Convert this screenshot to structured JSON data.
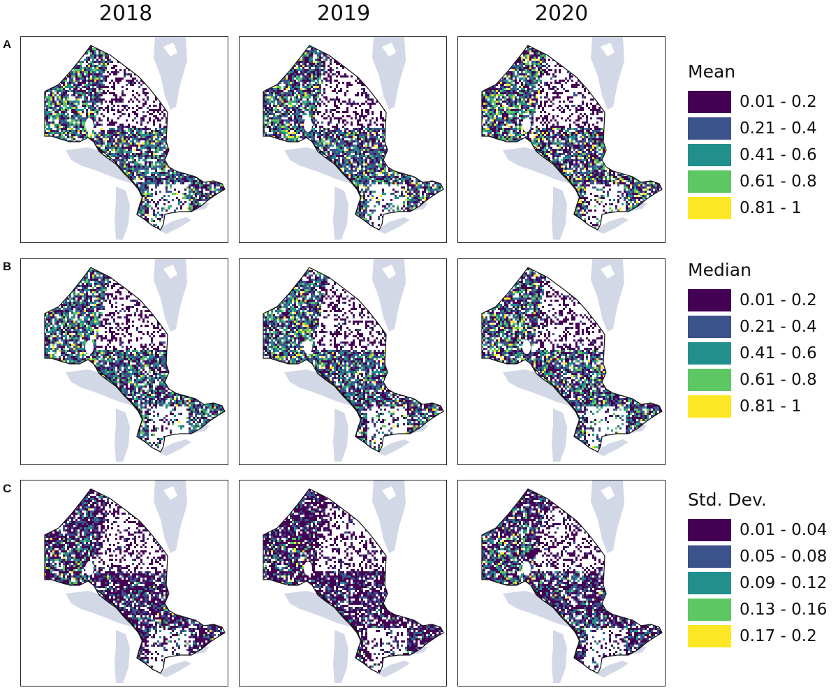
{
  "years": [
    "2018",
    "2019",
    "2020"
  ],
  "rows": [
    {
      "label": "A",
      "legend_title": "Mean",
      "classes": [
        "0.01 - 0.2",
        "0.21 - 0.4",
        "0.41 - 0.6",
        "0.61 - 0.8",
        "0.81 - 1"
      ],
      "palette_weights": [
        [
          0.34,
          0.3,
          0.2,
          0.12,
          0.04
        ],
        [
          0.36,
          0.31,
          0.18,
          0.11,
          0.04
        ],
        [
          0.4,
          0.24,
          0.16,
          0.12,
          0.08
        ]
      ]
    },
    {
      "label": "B",
      "legend_title": "Median",
      "classes": [
        "0.01 - 0.2",
        "0.21 - 0.4",
        "0.41 - 0.6",
        "0.61 - 0.8",
        "0.81 - 1"
      ],
      "palette_weights": [
        [
          0.36,
          0.3,
          0.2,
          0.11,
          0.03
        ],
        [
          0.38,
          0.3,
          0.18,
          0.1,
          0.04
        ],
        [
          0.4,
          0.28,
          0.17,
          0.11,
          0.04
        ]
      ]
    },
    {
      "label": "C",
      "legend_title": "Std. Dev.",
      "classes": [
        "0.01 - 0.04",
        "0.05 - 0.08",
        "0.09 - 0.12",
        "0.13 - 0.16",
        "0.17 - 0.2"
      ],
      "palette_weights": [
        [
          0.62,
          0.26,
          0.09,
          0.025,
          0.005
        ],
        [
          0.72,
          0.21,
          0.06,
          0.01,
          0.0
        ],
        [
          0.55,
          0.28,
          0.12,
          0.04,
          0.01
        ]
      ]
    }
  ],
  "colors": {
    "palette": [
      "#440154",
      "#3b528b",
      "#21908d",
      "#5dc863",
      "#fde725"
    ],
    "water": "#d3d8e6",
    "border": "#111111"
  }
}
